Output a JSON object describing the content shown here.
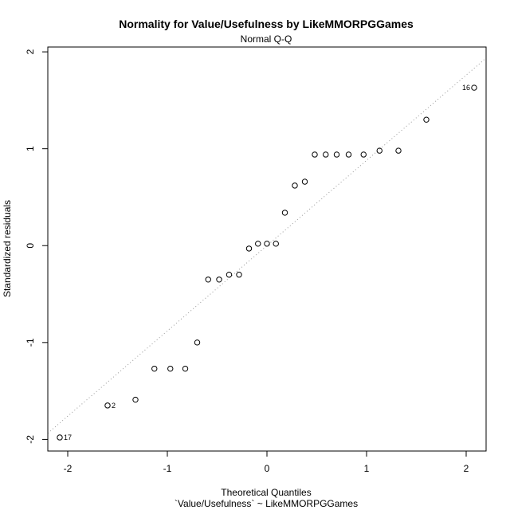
{
  "chart_data": {
    "type": "scatter",
    "title": "Normality for Value/Usefulness by LikeMMORPGGames",
    "subtitle": "Normal Q-Q",
    "xlabel": "Theoretical Quantiles",
    "xlabel2": "`Value/Usefulness` ~ LikeMMORPGGames",
    "ylabel": "Standardized residuals",
    "xlim": [
      -2.2,
      2.2
    ],
    "ylim": [
      -2.12,
      2.05
    ],
    "xticks": [
      -2,
      -1,
      0,
      1,
      2
    ],
    "yticks": [
      -2,
      -1,
      0,
      1,
      2
    ],
    "xtick_labels": [
      "-2",
      "-1",
      "0",
      "1",
      "2"
    ],
    "ytick_labels": [
      "-2",
      "-1",
      "0",
      "1",
      "2"
    ],
    "grid": false,
    "points": [
      {
        "x": -2.08,
        "y": -1.98,
        "label": "17"
      },
      {
        "x": -1.6,
        "y": -1.65,
        "label": "2"
      },
      {
        "x": -1.32,
        "y": -1.59,
        "label": ""
      },
      {
        "x": -1.13,
        "y": -1.27,
        "label": ""
      },
      {
        "x": -0.97,
        "y": -1.27,
        "label": ""
      },
      {
        "x": -0.82,
        "y": -1.27,
        "label": ""
      },
      {
        "x": -0.7,
        "y": -1.0,
        "label": ""
      },
      {
        "x": -0.59,
        "y": -0.35,
        "label": ""
      },
      {
        "x": -0.48,
        "y": -0.35,
        "label": ""
      },
      {
        "x": -0.38,
        "y": -0.3,
        "label": ""
      },
      {
        "x": -0.28,
        "y": -0.3,
        "label": ""
      },
      {
        "x": -0.18,
        "y": -0.03,
        "label": ""
      },
      {
        "x": -0.09,
        "y": 0.02,
        "label": ""
      },
      {
        "x": 0.0,
        "y": 0.02,
        "label": ""
      },
      {
        "x": 0.09,
        "y": 0.02,
        "label": ""
      },
      {
        "x": 0.18,
        "y": 0.34,
        "label": ""
      },
      {
        "x": 0.28,
        "y": 0.62,
        "label": ""
      },
      {
        "x": 0.38,
        "y": 0.66,
        "label": ""
      },
      {
        "x": 0.48,
        "y": 0.94,
        "label": ""
      },
      {
        "x": 0.59,
        "y": 0.94,
        "label": ""
      },
      {
        "x": 0.7,
        "y": 0.94,
        "label": ""
      },
      {
        "x": 0.82,
        "y": 0.94,
        "label": ""
      },
      {
        "x": 0.97,
        "y": 0.94,
        "label": ""
      },
      {
        "x": 1.13,
        "y": 0.98,
        "label": ""
      },
      {
        "x": 1.32,
        "y": 0.98,
        "label": ""
      },
      {
        "x": 1.6,
        "y": 1.3,
        "label": ""
      },
      {
        "x": 2.08,
        "y": 1.63,
        "label": "16"
      }
    ],
    "reference_line": {
      "style": "dotted",
      "color": "#999999",
      "intercept": 0.0,
      "slope": 0.88
    }
  }
}
